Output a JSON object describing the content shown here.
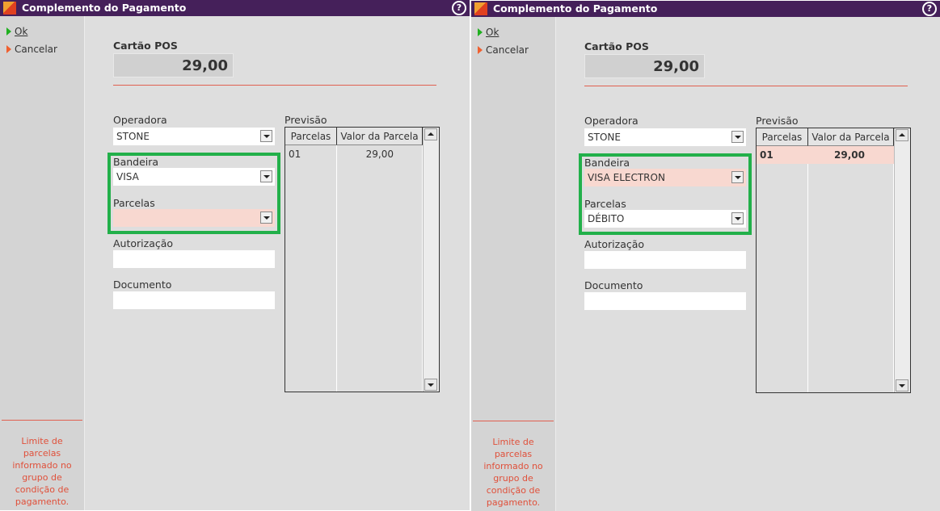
{
  "panels": [
    {
      "title": "Complemento do Pagamento",
      "actions": {
        "ok": "Ok",
        "cancel": "Cancelar"
      },
      "note": "Limite de parcelas informado no grupo de condição de pagamento.",
      "section": "Cartão POS",
      "amount": "29,00",
      "operadora": {
        "label": "Operadora",
        "value": "STONE"
      },
      "bandeira": {
        "label": "Bandeira",
        "value": "VISA"
      },
      "parcelas": {
        "label": "Parcelas",
        "value": ""
      },
      "autorizacao": {
        "label": "Autorização",
        "value": ""
      },
      "documento": {
        "label": "Documento",
        "value": ""
      },
      "previsao": {
        "label": "Previsão",
        "columns": [
          "Parcelas",
          "Valor da Parcela"
        ],
        "rows": [
          [
            "01",
            "29,00"
          ]
        ]
      }
    },
    {
      "title": "Complemento do Pagamento",
      "actions": {
        "ok": "Ok",
        "cancel": "Cancelar"
      },
      "note": "Limite de parcelas informado no grupo de condição de pagamento.",
      "section": "Cartão POS",
      "amount": "29,00",
      "operadora": {
        "label": "Operadora",
        "value": "STONE"
      },
      "bandeira": {
        "label": "Bandeira",
        "value": "VISA ELECTRON"
      },
      "parcelas": {
        "label": "Parcelas",
        "value": "DÉBITO"
      },
      "autorizacao": {
        "label": "Autorização",
        "value": ""
      },
      "documento": {
        "label": "Documento",
        "value": ""
      },
      "previsao": {
        "label": "Previsão",
        "columns": [
          "Parcelas",
          "Valor da Parcela"
        ],
        "rows": [
          [
            "01",
            "29,00"
          ]
        ]
      }
    }
  ],
  "colors": {
    "titlebar": "#45205a",
    "highlight": "#22b04a",
    "error_fill": "#f8d8d0",
    "note": "#e0503a"
  }
}
